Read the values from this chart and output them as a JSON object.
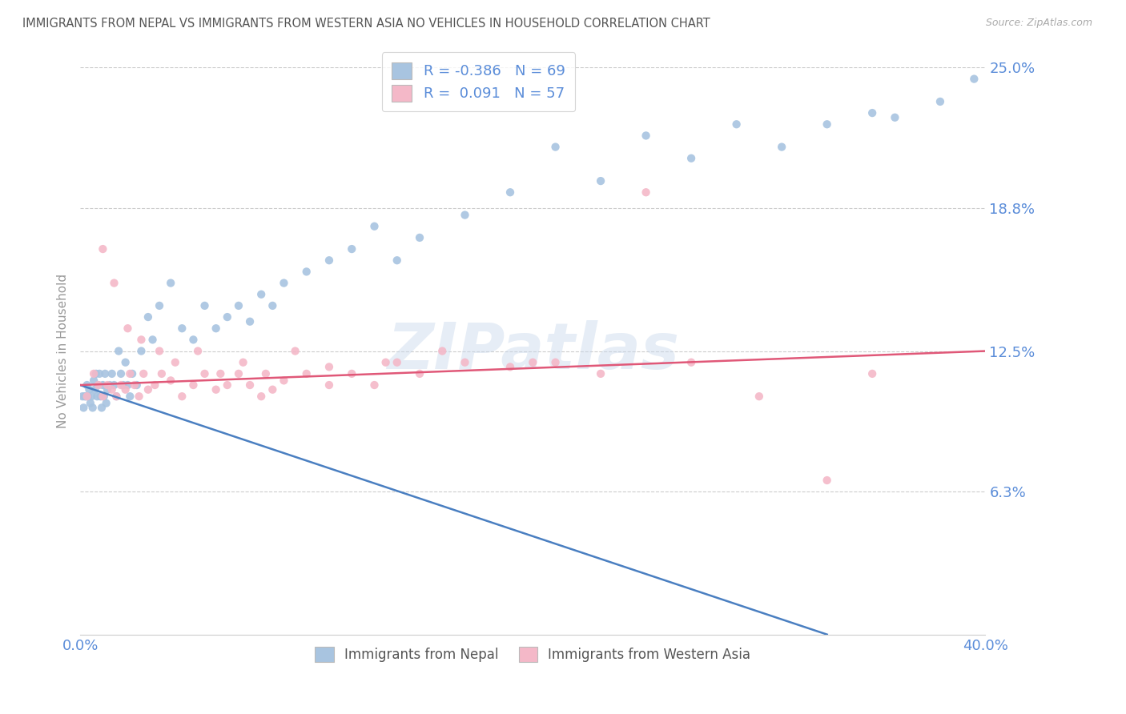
{
  "title": "IMMIGRANTS FROM NEPAL VS IMMIGRANTS FROM WESTERN ASIA NO VEHICLES IN HOUSEHOLD CORRELATION CHART",
  "source": "Source: ZipAtlas.com",
  "ylabel": "No Vehicles in Household",
  "xlim": [
    0.0,
    40.0
  ],
  "ylim": [
    0.0,
    25.0
  ],
  "yticks": [
    0.0,
    6.3,
    12.5,
    18.8,
    25.0
  ],
  "ytick_labels": [
    "",
    "6.3%",
    "12.5%",
    "18.8%",
    "25.0%"
  ],
  "nepal_R": -0.386,
  "nepal_N": 69,
  "western_R": 0.091,
  "western_N": 57,
  "nepal_color": "#a8c4e0",
  "western_color": "#f4b8c8",
  "nepal_line_color": "#4a7fc1",
  "western_line_color": "#e05878",
  "background_color": "#ffffff",
  "grid_color": "#cccccc",
  "title_color": "#555555",
  "axis_label_color": "#5b8dd9",
  "watermark": "ZIPatlas",
  "nepal_x": [
    0.1,
    0.15,
    0.2,
    0.25,
    0.3,
    0.35,
    0.4,
    0.45,
    0.5,
    0.55,
    0.6,
    0.65,
    0.7,
    0.75,
    0.8,
    0.85,
    0.9,
    0.95,
    1.0,
    1.05,
    1.1,
    1.15,
    1.2,
    1.3,
    1.4,
    1.5,
    1.6,
    1.7,
    1.8,
    1.9,
    2.0,
    2.1,
    2.2,
    2.3,
    2.5,
    2.7,
    3.0,
    3.2,
    3.5,
    4.0,
    4.5,
    5.0,
    5.5,
    6.0,
    6.5,
    7.0,
    7.5,
    8.0,
    8.5,
    9.0,
    10.0,
    11.0,
    12.0,
    13.0,
    14.0,
    15.0,
    17.0,
    19.0,
    21.0,
    23.0,
    25.0,
    27.0,
    29.0,
    31.0,
    33.0,
    35.0,
    36.0,
    38.0,
    39.5
  ],
  "nepal_y": [
    10.5,
    10.0,
    10.5,
    10.5,
    11.0,
    10.5,
    10.8,
    10.2,
    10.5,
    10.0,
    11.2,
    10.8,
    11.5,
    10.5,
    11.0,
    11.5,
    10.5,
    10.0,
    11.0,
    10.5,
    11.5,
    10.2,
    10.8,
    11.0,
    11.5,
    11.0,
    10.5,
    12.5,
    11.5,
    11.0,
    12.0,
    11.0,
    10.5,
    11.5,
    11.0,
    12.5,
    14.0,
    13.0,
    14.5,
    15.5,
    13.5,
    13.0,
    14.5,
    13.5,
    14.0,
    14.5,
    13.8,
    15.0,
    14.5,
    15.5,
    16.0,
    16.5,
    17.0,
    18.0,
    16.5,
    17.5,
    18.5,
    19.5,
    21.5,
    20.0,
    22.0,
    21.0,
    22.5,
    21.5,
    22.5,
    23.0,
    22.8,
    23.5,
    24.5
  ],
  "western_x": [
    0.3,
    0.6,
    0.8,
    1.0,
    1.2,
    1.4,
    1.6,
    1.8,
    2.0,
    2.2,
    2.4,
    2.6,
    2.8,
    3.0,
    3.3,
    3.6,
    4.0,
    4.5,
    5.0,
    5.5,
    6.0,
    6.5,
    7.0,
    7.5,
    8.0,
    8.5,
    9.0,
    10.0,
    11.0,
    12.0,
    13.0,
    14.0,
    15.0,
    17.0,
    19.0,
    21.0,
    23.0,
    25.0,
    27.0,
    30.0,
    33.0,
    35.0,
    1.0,
    1.5,
    2.1,
    2.7,
    3.5,
    4.2,
    5.2,
    6.2,
    7.2,
    8.2,
    9.5,
    11.0,
    13.5,
    16.0,
    20.0
  ],
  "western_y": [
    10.5,
    11.5,
    11.0,
    10.5,
    11.0,
    10.8,
    10.5,
    11.0,
    10.8,
    11.5,
    11.0,
    10.5,
    11.5,
    10.8,
    11.0,
    11.5,
    11.2,
    10.5,
    11.0,
    11.5,
    10.8,
    11.0,
    11.5,
    11.0,
    10.5,
    10.8,
    11.2,
    11.5,
    11.0,
    11.5,
    11.0,
    12.0,
    11.5,
    12.0,
    11.8,
    12.0,
    11.5,
    19.5,
    12.0,
    10.5,
    6.8,
    11.5,
    17.0,
    15.5,
    13.5,
    13.0,
    12.5,
    12.0,
    12.5,
    11.5,
    12.0,
    11.5,
    12.5,
    11.8,
    12.0,
    12.5,
    12.0
  ],
  "nepal_line_start_y": 11.0,
  "nepal_line_end_y": 0.0,
  "nepal_line_end_x": 33.0,
  "western_line_start_y": 11.0,
  "western_line_end_y": 12.5,
  "western_line_start_x": 0.0,
  "western_line_end_x": 40.0
}
